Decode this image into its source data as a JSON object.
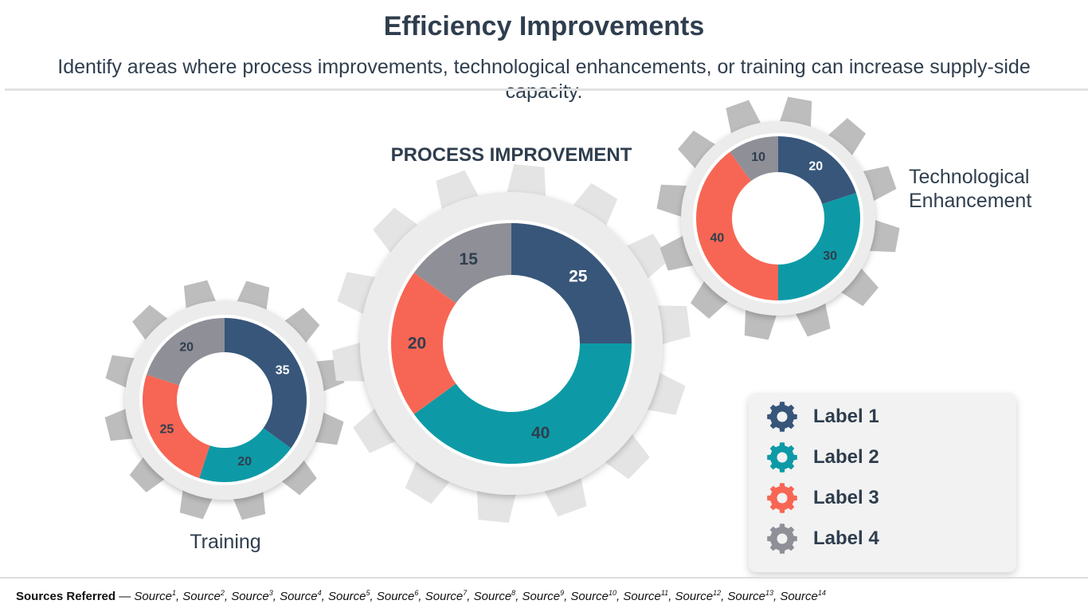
{
  "title": "Efficiency Improvements",
  "subtitle": "Identify areas where process improvements, technological enhancements, or training can increase supply-side capacity.",
  "legend": [
    {
      "label": "Label 1",
      "color": "#37567a",
      "icon": "gear-icon"
    },
    {
      "label": "Label 2",
      "color": "#0d9aa6",
      "icon": "gear-icon"
    },
    {
      "label": "Label 3",
      "color": "#f76654",
      "icon": "gear-icon"
    },
    {
      "label": "Label 4",
      "color": "#8f8f98",
      "icon": "gear-icon"
    }
  ],
  "chart_data": [
    {
      "type": "donut",
      "title": "Training",
      "categories": [
        "Label 1",
        "Label 2",
        "Label 3",
        "Label 4"
      ],
      "values": [
        35,
        20,
        25,
        20
      ]
    },
    {
      "type": "donut",
      "title": "PROCESS IMPROVEMENT",
      "categories": [
        "Label 1",
        "Label 2",
        "Label 3",
        "Label 4"
      ],
      "values": [
        25,
        40,
        20,
        15
      ]
    },
    {
      "type": "donut",
      "title": "Technological Enhancement",
      "categories": [
        "Label 1",
        "Label 2",
        "Label 3",
        "Label 4"
      ],
      "values": [
        20,
        30,
        40,
        10
      ]
    }
  ],
  "sources": {
    "label": "Sources Referred",
    "separator": "—",
    "items": [
      "Source",
      "Source",
      "Source",
      "Source",
      "Source",
      "Source",
      "Source",
      "Source",
      "Source",
      "Source",
      "Source",
      "Source",
      "Source",
      "Source"
    ],
    "marks": [
      "1",
      "2",
      "3",
      "4",
      "5",
      "6",
      "7",
      "8",
      "9",
      "10",
      "11",
      "12",
      "13",
      "14"
    ]
  }
}
